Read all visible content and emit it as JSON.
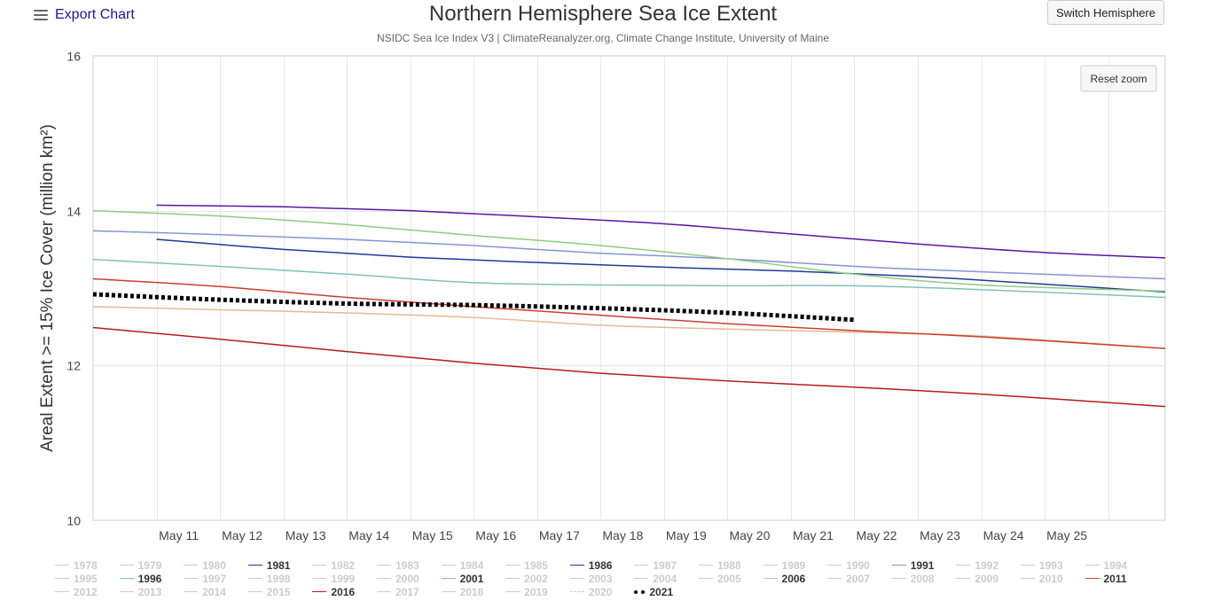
{
  "header": {
    "export_label": "Export Chart",
    "switch_label": "Switch Hemisphere",
    "reset_label": "Reset zoom",
    "menu_icon": "hamburger-menu-icon"
  },
  "chart_data": {
    "type": "line",
    "title": "Northern Hemisphere Sea Ice Extent",
    "subtitle": "NSIDC Sea Ice Index V3 | ClimateReanalyzer.org, Climate Change Institute, University of Maine",
    "ylabel": "Areal Extent >= 15% Ice Cover (million km²)",
    "xlabel": "",
    "ylim": [
      10,
      16
    ],
    "yticks": [
      10,
      12,
      14,
      16
    ],
    "xlim": [
      10,
      26.9
    ],
    "xticks": [
      {
        "day": 11,
        "label": "May 11"
      },
      {
        "day": 12,
        "label": "May 12"
      },
      {
        "day": 13,
        "label": "May 13"
      },
      {
        "day": 14,
        "label": "May 14"
      },
      {
        "day": 15,
        "label": "May 15"
      },
      {
        "day": 16,
        "label": "May 16"
      },
      {
        "day": 17,
        "label": "May 17"
      },
      {
        "day": 18,
        "label": "May 18"
      },
      {
        "day": 19,
        "label": "May 19"
      },
      {
        "day": 20,
        "label": "May 20"
      },
      {
        "day": 21,
        "label": "May 21"
      },
      {
        "day": 22,
        "label": "May 22"
      },
      {
        "day": 23,
        "label": "May 23"
      },
      {
        "day": 24,
        "label": "May 24"
      },
      {
        "day": 25,
        "label": "May 25"
      }
    ],
    "grid": true,
    "legend_position": "bottom",
    "series": [
      {
        "name": "1981",
        "color": "#5b16a3",
        "dash": "solid",
        "width": 1.5,
        "x": [
          11,
          13,
          15,
          17,
          19,
          21,
          23,
          25,
          26.9
        ],
        "y": [
          14.07,
          14.05,
          14.0,
          13.92,
          13.83,
          13.7,
          13.57,
          13.46,
          13.39
        ]
      },
      {
        "name": "1986",
        "color": "#1f3a93",
        "dash": "solid",
        "width": 1.5,
        "x": [
          11,
          13,
          15,
          17,
          19,
          21,
          23,
          25,
          26.9
        ],
        "y": [
          13.63,
          13.5,
          13.4,
          13.33,
          13.27,
          13.22,
          13.15,
          13.05,
          12.95
        ]
      },
      {
        "name": "1991",
        "color": "#8395d8",
        "dash": "solid",
        "width": 1.5,
        "x": [
          10,
          12,
          14,
          16,
          18,
          20,
          22,
          24,
          26.9
        ],
        "y": [
          13.74,
          13.69,
          13.63,
          13.55,
          13.45,
          13.38,
          13.28,
          13.21,
          13.12
        ]
      },
      {
        "name": "1996",
        "color": "#7fc1bd",
        "dash": "solid",
        "width": 1.5,
        "x": [
          10,
          12,
          14,
          16,
          18,
          20,
          22,
          24,
          26.9
        ],
        "y": [
          13.37,
          13.28,
          13.18,
          13.07,
          13.04,
          13.03,
          13.03,
          12.98,
          12.88
        ]
      },
      {
        "name": "2001",
        "color": "#8fcb82",
        "dash": "solid",
        "width": 1.5,
        "x": [
          10,
          12,
          14,
          16,
          18,
          20,
          22,
          24,
          26.9
        ],
        "y": [
          14.0,
          13.93,
          13.82,
          13.68,
          13.55,
          13.38,
          13.18,
          13.04,
          12.96
        ]
      },
      {
        "name": "2006",
        "color": "#e3b896",
        "dash": "solid",
        "width": 1.5,
        "x": [
          10,
          12,
          14,
          16,
          18,
          20,
          22,
          24,
          26.9
        ],
        "y": [
          12.76,
          12.72,
          12.68,
          12.62,
          12.52,
          12.47,
          12.43,
          12.38,
          12.22
        ]
      },
      {
        "name": "2011",
        "color": "#c8412e",
        "dash": "solid",
        "width": 1.5,
        "x": [
          10,
          12,
          14,
          16,
          18,
          20,
          22,
          24,
          26.9
        ],
        "y": [
          13.12,
          13.02,
          12.88,
          12.76,
          12.65,
          12.54,
          12.45,
          12.37,
          12.22
        ]
      },
      {
        "name": "2016",
        "color": "#b71c1c",
        "dash": "solid",
        "width": 1.5,
        "x": [
          10,
          12,
          14,
          16,
          18,
          20,
          22,
          24,
          26.9
        ],
        "y": [
          12.49,
          12.34,
          12.18,
          12.03,
          11.9,
          11.8,
          11.72,
          11.63,
          11.47
        ]
      },
      {
        "name": "2021",
        "color": "#000000",
        "dash": "dotted",
        "width": 5,
        "x": [
          10,
          12,
          14,
          16,
          18,
          20,
          22
        ],
        "y": [
          12.92,
          12.85,
          12.8,
          12.78,
          12.74,
          12.68,
          12.59
        ]
      }
    ],
    "legend": [
      "1978",
      "1979",
      "1980",
      "1981",
      "1982",
      "1983",
      "1984",
      "1985",
      "1986",
      "1987",
      "1988",
      "1989",
      "1990",
      "1991",
      "1992",
      "1993",
      "1994",
      "1995",
      "1996",
      "1997",
      "1998",
      "1999",
      "2000",
      "2001",
      "2002",
      "2003",
      "2004",
      "2005",
      "2006",
      "2007",
      "2008",
      "2009",
      "2010",
      "2011",
      "2012",
      "2013",
      "2014",
      "2015",
      "2016",
      "2017",
      "2018",
      "2019",
      "2020",
      "2021"
    ],
    "legend_active": [
      "1981",
      "1986",
      "1991",
      "1996",
      "2001",
      "2006",
      "2011",
      "2016",
      "2021"
    ],
    "legend_dashed": [
      "2020"
    ],
    "inactive_color": "#cccccc"
  }
}
